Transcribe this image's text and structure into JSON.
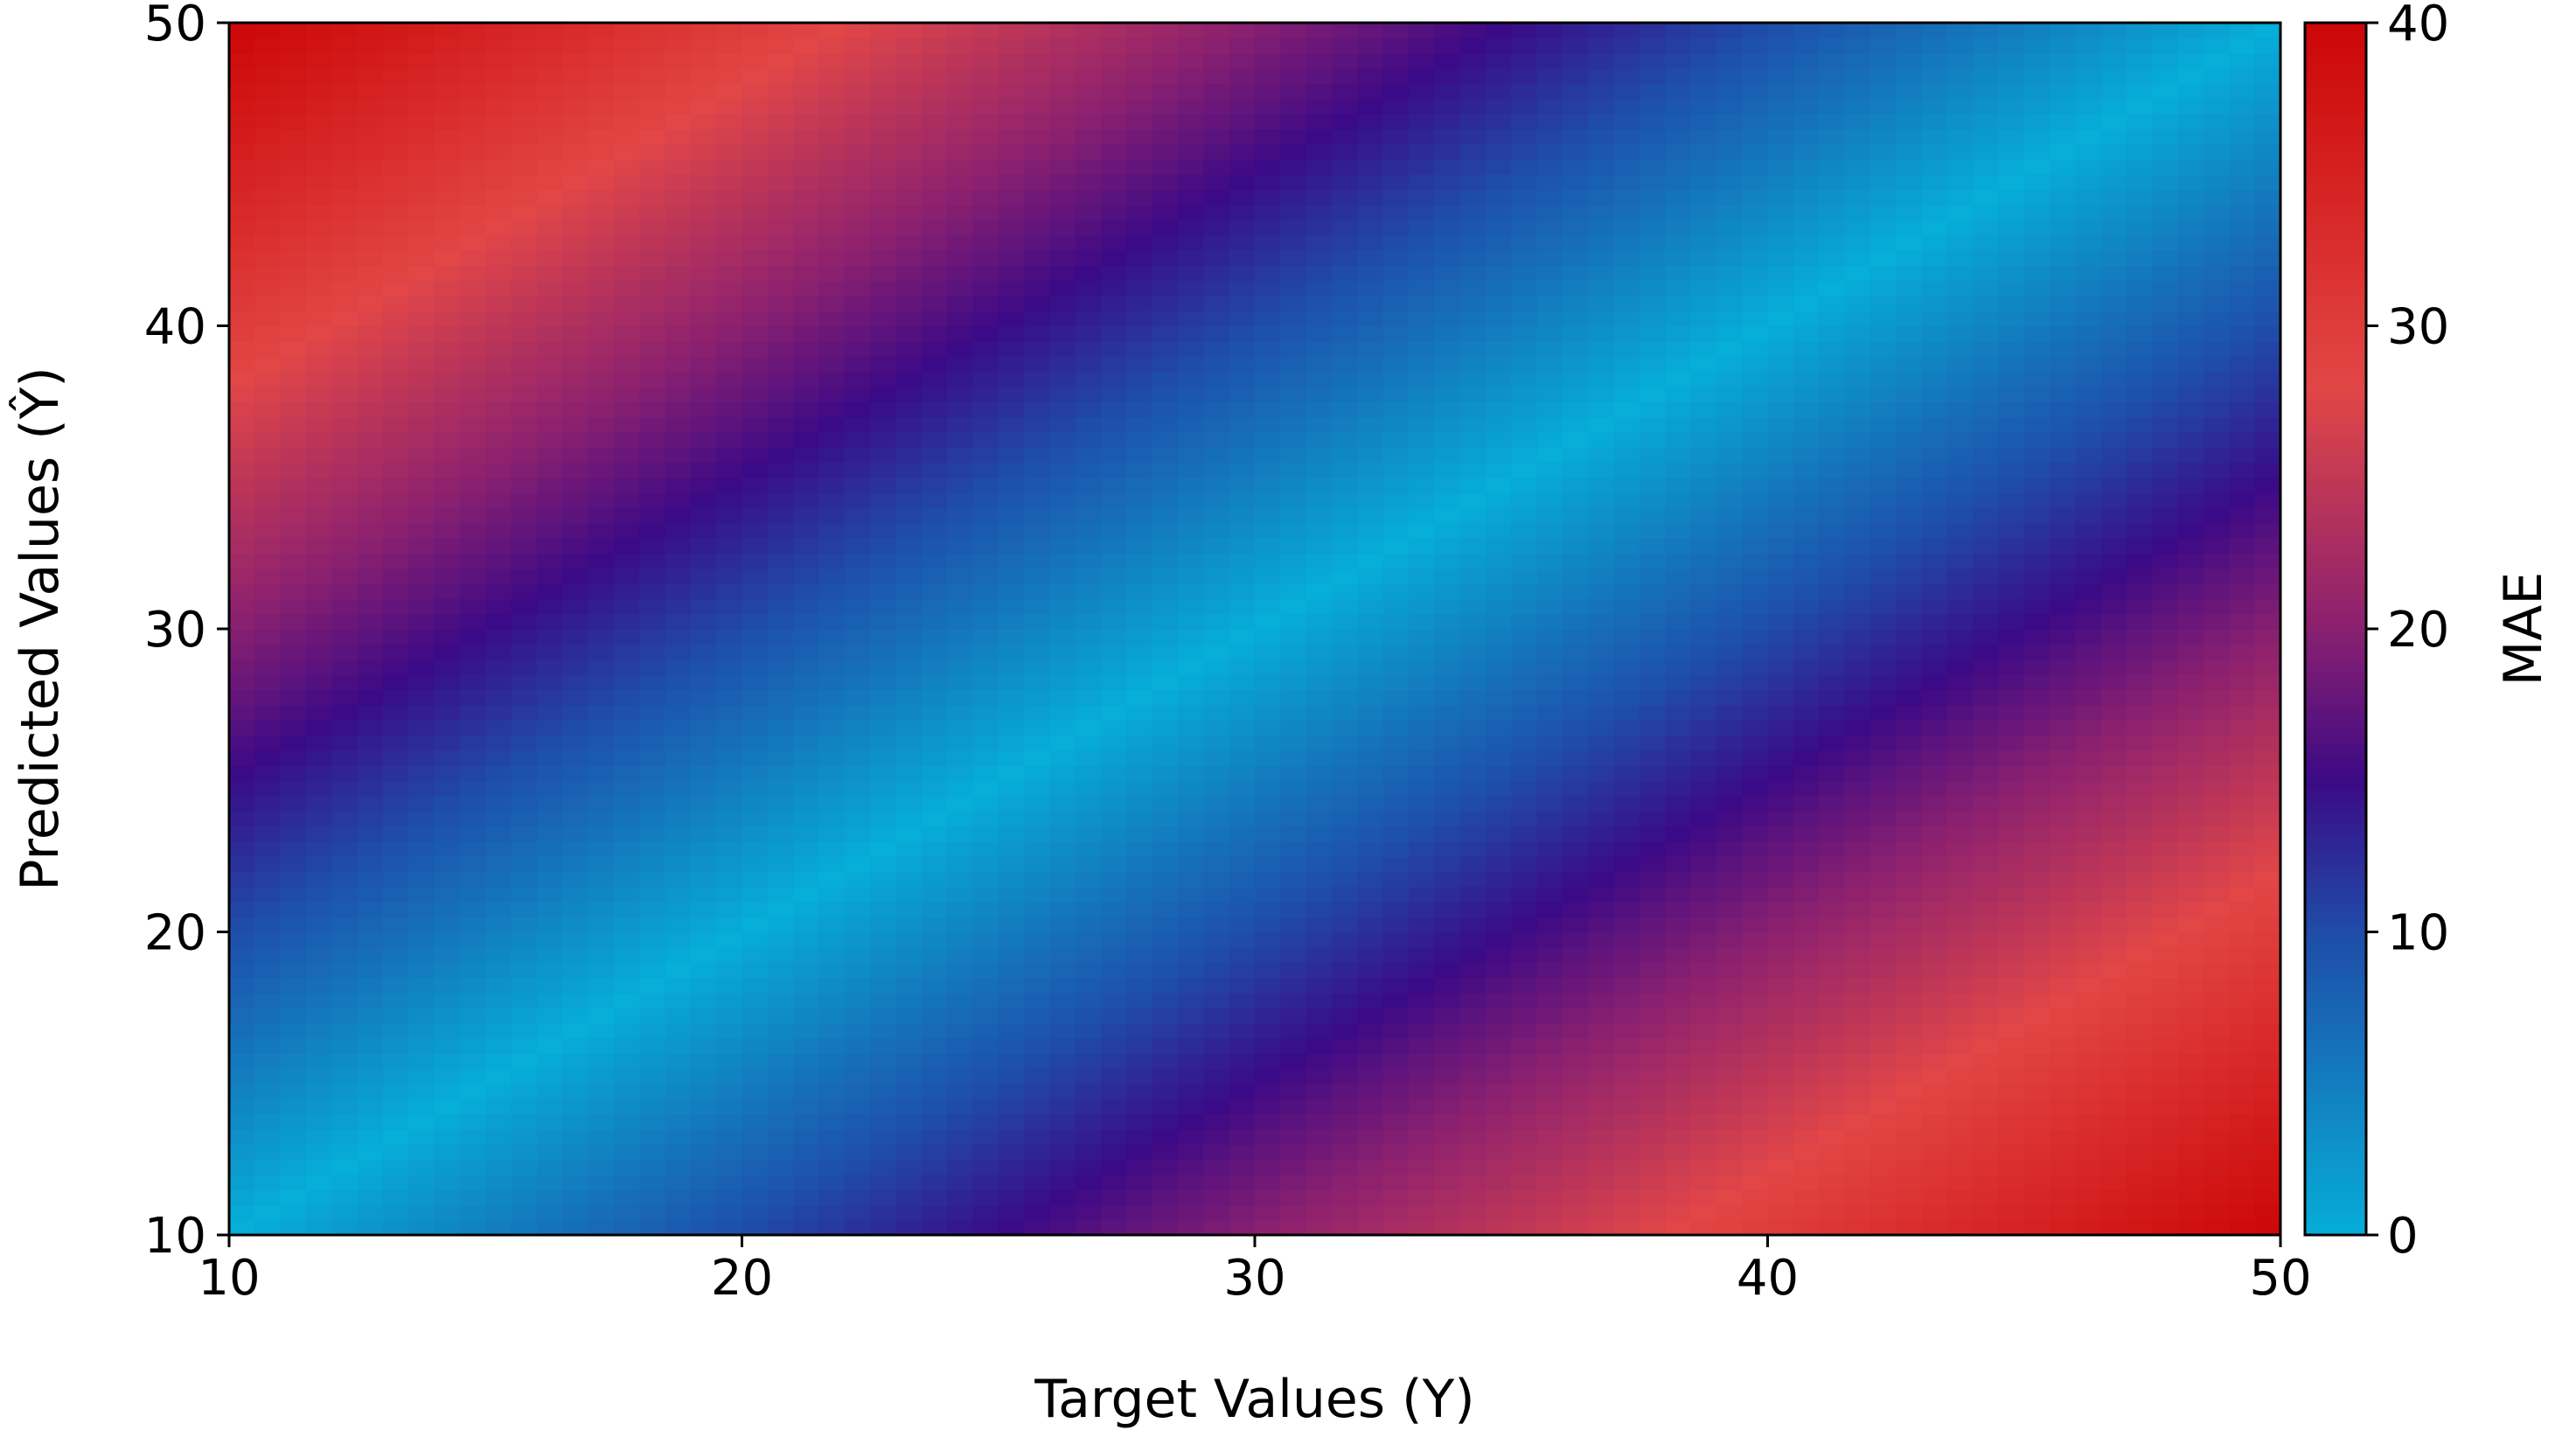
{
  "chart_data": {
    "type": "heatmap",
    "title": "",
    "xlabel": "Target Values (Y)",
    "ylabel": "Predicted Values (Ŷ)",
    "xlim": [
      10,
      50
    ],
    "ylim": [
      10,
      50
    ],
    "x_ticks": [
      "10",
      "20",
      "30",
      "40",
      "50"
    ],
    "y_ticks": [
      "10",
      "20",
      "30",
      "40",
      "50"
    ],
    "z_formula": "|predicted - target|",
    "grid": false,
    "colorbar": {
      "label": "MAE",
      "range": [
        0,
        40
      ],
      "ticks": [
        "0",
        "10",
        "20",
        "30",
        "40"
      ],
      "colormap_stops": [
        {
          "value": 0,
          "color": "#06aed8"
        },
        {
          "value": 10,
          "color": "#1f4ca8"
        },
        {
          "value": 15,
          "color": "#3b0a86"
        },
        {
          "value": 20,
          "color": "#8a2070"
        },
        {
          "value": 28,
          "color": "#e24646"
        },
        {
          "value": 40,
          "color": "#cc0606"
        }
      ]
    }
  }
}
